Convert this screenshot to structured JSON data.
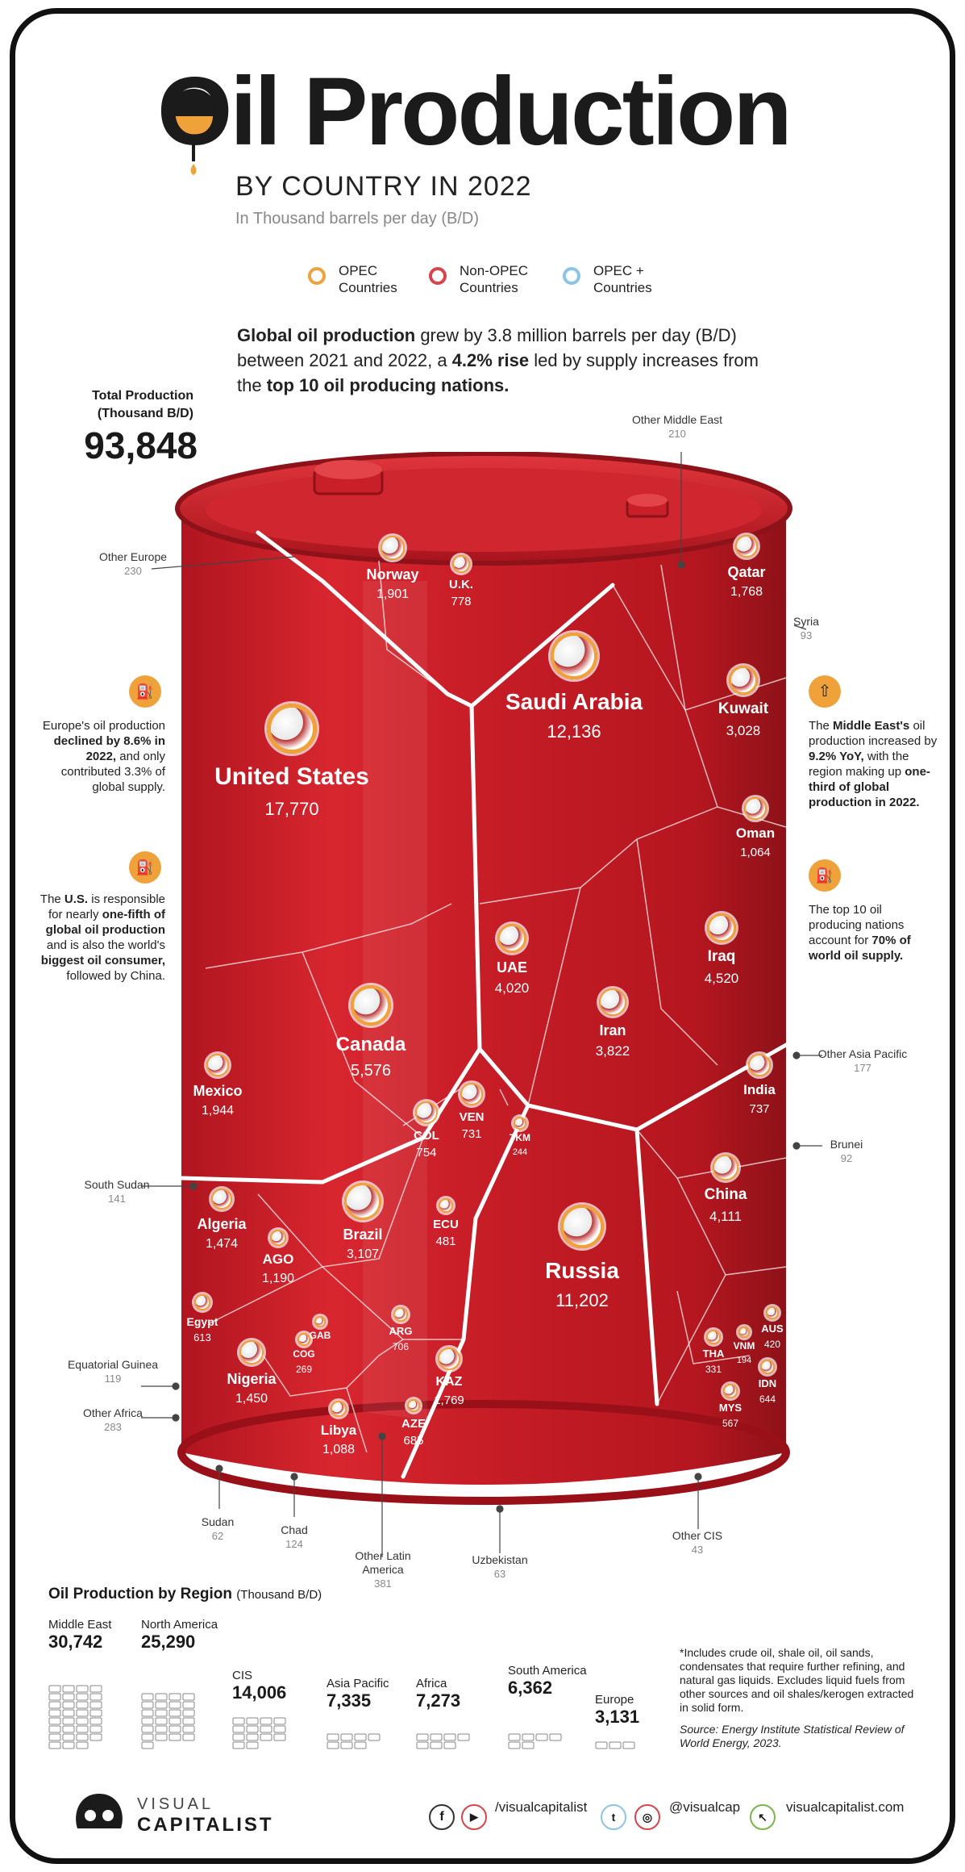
{
  "header": {
    "title": "Oil Production",
    "subtitle": "BY COUNTRY IN 2022",
    "unit": "In Thousand barrels per day (B/D)"
  },
  "legend": [
    {
      "label": "OPEC Countries",
      "color": "#f0a23a"
    },
    {
      "label": "Non-OPEC Countries",
      "color": "#d9434a"
    },
    {
      "label": "OPEC + Countries",
      "color": "#8cc4e8"
    }
  ],
  "intro": {
    "part1": "Global oil production",
    "part2": " grew by 3.8 million barrels per day (B/D) between 2021 and 2022, a ",
    "part3": "4.2% rise",
    "part4": " led by supply increases from the ",
    "part5": "top 10 oil producing nations."
  },
  "total": {
    "label": "Total Production (Thousand B/D)",
    "value": "93,848"
  },
  "notes": {
    "europe": {
      "a": "Europe's oil production ",
      "b": "declined by 8.6% in 2022,",
      "c": " and only contributed 3.3% of global supply."
    },
    "us": {
      "a": "The ",
      "b": "U.S.",
      "c": " is responsible for nearly ",
      "d": "one-fifth of global oil production",
      "e": " and is also the world's ",
      "f": "biggest oil consumer,",
      "g": " followed by China."
    },
    "middle_east": {
      "a": "The ",
      "b": "Middle East's",
      "c": " oil production increased by ",
      "d": "9.2% YoY,",
      "e": " with the region making up ",
      "f": "one-third of global production in 2022."
    },
    "top10": {
      "a": "The top 10 oil producing nations account for ",
      "b": "70% of world oil supply."
    }
  },
  "colors": {
    "barrel": "#c8202a",
    "barrel_dark": "#8e1219",
    "accent": "#f0a23a",
    "ink": "#1b1b1b"
  },
  "chart_data": {
    "type": "voronoi-treemap",
    "title": "Oil Production",
    "subtitle": "BY COUNTRY IN 2022",
    "unit": "In Thousand barrels per day (B/D)",
    "total": 93848,
    "countries": [
      {
        "name": "United States",
        "value": "17,770",
        "raw": 17770,
        "flag": "us-flag"
      },
      {
        "name": "Saudi Arabia",
        "value": "12,136",
        "raw": 12136,
        "flag": "saudi-flag"
      },
      {
        "name": "Russia",
        "value": "11,202",
        "raw": 11202,
        "flag": "russia-flag"
      },
      {
        "name": "Canada",
        "value": "5,576",
        "raw": 5576,
        "flag": "canada-flag"
      },
      {
        "name": "Iraq",
        "value": "4,520",
        "raw": 4520,
        "flag": "iraq-flag"
      },
      {
        "name": "China",
        "value": "4,111",
        "raw": 4111,
        "flag": "china-flag"
      },
      {
        "name": "UAE",
        "value": "4,020",
        "raw": 4020,
        "flag": "uae-flag"
      },
      {
        "name": "Iran",
        "value": "3,822",
        "raw": 3822,
        "flag": "iran-flag"
      },
      {
        "name": "Brazil",
        "value": "3,107",
        "raw": 3107,
        "flag": "brazil-flag"
      },
      {
        "name": "Kuwait",
        "value": "3,028",
        "raw": 3028,
        "flag": "kuwait-flag"
      },
      {
        "name": "Mexico",
        "value": "1,944",
        "raw": 1944,
        "flag": "mexico-flag"
      },
      {
        "name": "Norway",
        "value": "1,901",
        "raw": 1901,
        "flag": "norway-flag"
      },
      {
        "name": "KAZ",
        "value": "1,769",
        "raw": 1769,
        "flag": "kaz-flag"
      },
      {
        "name": "Qatar",
        "value": "1,768",
        "raw": 1768,
        "flag": "qatar-flag"
      },
      {
        "name": "Algeria",
        "value": "1,474",
        "raw": 1474,
        "flag": "algeria-flag"
      },
      {
        "name": "Nigeria",
        "value": "1,450",
        "raw": 1450,
        "flag": "nigeria-flag"
      },
      {
        "name": "AGO",
        "value": "1,190",
        "raw": 1190,
        "flag": "angola-flag"
      },
      {
        "name": "Libya",
        "value": "1,088",
        "raw": 1088,
        "flag": "libya-flag"
      },
      {
        "name": "Oman",
        "value": "1,064",
        "raw": 1064,
        "flag": "oman-flag"
      },
      {
        "name": "U.K.",
        "value": "778",
        "raw": 778,
        "flag": "uk-flag"
      },
      {
        "name": "COL",
        "value": "754",
        "raw": 754,
        "flag": "colombia-flag"
      },
      {
        "name": "India",
        "value": "737",
        "raw": 737,
        "flag": "india-flag"
      },
      {
        "name": "VEN",
        "value": "731",
        "raw": 731,
        "flag": "venezuela-flag"
      },
      {
        "name": "ARG",
        "value": "706",
        "raw": 706,
        "flag": "argentina-flag"
      },
      {
        "name": "AZE",
        "value": "685",
        "raw": 685,
        "flag": "azerbaijan-flag"
      },
      {
        "name": "IDN",
        "value": "644",
        "raw": 644,
        "flag": "indonesia-flag"
      },
      {
        "name": "Egypt",
        "value": "613",
        "raw": 613,
        "flag": "egypt-flag"
      },
      {
        "name": "MYS",
        "value": "567",
        "raw": 567,
        "flag": "malaysia-flag"
      },
      {
        "name": "ECU",
        "value": "481",
        "raw": 481,
        "flag": "ecuador-flag"
      },
      {
        "name": "AUS",
        "value": "420",
        "raw": 420,
        "flag": "australia-flag"
      },
      {
        "name": "THA",
        "value": "331",
        "raw": 331,
        "flag": "thailand-flag"
      },
      {
        "name": "COG",
        "value": "269",
        "raw": 269,
        "flag": "congo-flag"
      },
      {
        "name": "TKM",
        "value": "244",
        "raw": 244,
        "flag": "turkmenistan-flag"
      },
      {
        "name": "VNM",
        "value": "194",
        "raw": 194,
        "flag": "vietnam-flag"
      },
      {
        "name": "GAB",
        "value": "",
        "raw": null,
        "flag": "gabon-flag"
      }
    ],
    "callouts": [
      {
        "name": "Other Europe",
        "value": "230"
      },
      {
        "name": "Other Middle East",
        "value": "210"
      },
      {
        "name": "Syria",
        "value": "93"
      },
      {
        "name": "Other Asia Pacific",
        "value": "177"
      },
      {
        "name": "Brunei",
        "value": "92"
      },
      {
        "name": "South Sudan",
        "value": "141"
      },
      {
        "name": "Equatorial Guinea",
        "value": "119"
      },
      {
        "name": "Other Africa",
        "value": "283"
      },
      {
        "name": "Sudan",
        "value": "62"
      },
      {
        "name": "Chad",
        "value": "124"
      },
      {
        "name": "Other Latin America",
        "value": "381"
      },
      {
        "name": "Uzbekistan",
        "value": "63"
      },
      {
        "name": "Other CIS",
        "value": "43"
      }
    ],
    "regions_title": "Oil Production by Region",
    "regions_unit": "(Thousand B/D)",
    "regions": [
      {
        "name": "Middle East",
        "value": "30,742",
        "raw": 30742
      },
      {
        "name": "North America",
        "value": "25,290",
        "raw": 25290
      },
      {
        "name": "CIS",
        "value": "14,006",
        "raw": 14006
      },
      {
        "name": "Asia Pacific",
        "value": "7,335",
        "raw": 7335
      },
      {
        "name": "Africa",
        "value": "7,273",
        "raw": 7273
      },
      {
        "name": "South America",
        "value": "6,362",
        "raw": 6362
      },
      {
        "name": "Europe",
        "value": "3,131",
        "raw": 3131
      }
    ]
  },
  "footnote": "*Includes crude oil, shale oil, oil sands, condensates that require further refining, and natural gas liquids. Excludes liquid fuels from other sources and oil shales/kerogen extracted in solid form.",
  "source": "Source: Energy Institute Statistical Review of World Energy, 2023.",
  "footer": {
    "brand_top": "VISUAL",
    "brand_bottom": "CAPITALIST",
    "handle1": "/visualcapitalist",
    "handle2": "@visualcap",
    "site": "visualcapitalist.com"
  }
}
